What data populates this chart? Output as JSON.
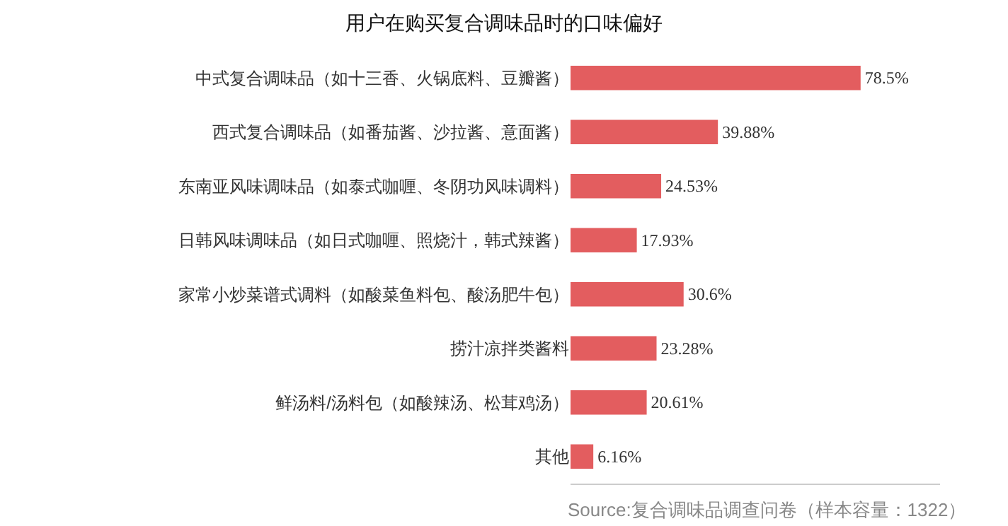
{
  "chart_data": {
    "type": "bar",
    "orientation": "horizontal",
    "title": "用户在购买复合调味品时的口味偏好",
    "categories": [
      "中式复合调味品（如十三香、火锅底料、豆瓣酱）",
      "西式复合调味品（如番茄酱、沙拉酱、意面酱）",
      "东南亚风味调味品（如泰式咖喱、冬阴功风味调料）",
      "日韩风味调味品（如日式咖喱、照烧汁，韩式辣酱）",
      "家常小炒菜谱式调料（如酸菜鱼料包、酸汤肥牛包）",
      "捞汁凉拌类酱料",
      "鲜汤料/汤料包（如酸辣汤、松茸鸡汤）",
      "其他"
    ],
    "values": [
      78.5,
      39.88,
      24.53,
      17.93,
      30.6,
      23.28,
      20.61,
      6.16
    ],
    "value_labels": [
      "78.5%",
      "39.88%",
      "24.53%",
      "17.93%",
      "30.6%",
      "23.28%",
      "20.61%",
      "6.16%"
    ],
    "color": "#e35d5f",
    "xlim": [
      0,
      100
    ],
    "tick_labels": "y",
    "annotations": [
      "Source:复合调味品调查问卷（样本容量：1322）"
    ]
  }
}
